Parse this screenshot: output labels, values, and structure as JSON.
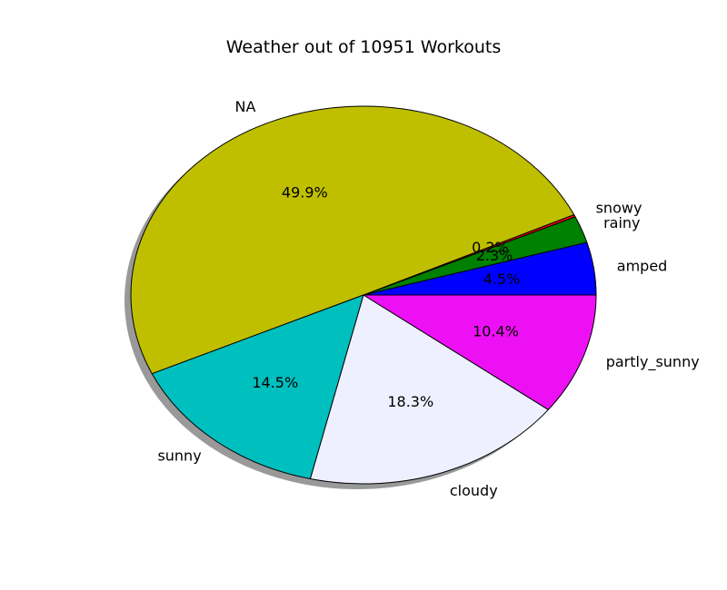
{
  "chart_data": {
    "type": "pie",
    "title": "Weather out of 10951 Workouts",
    "start_angle_deg": 0,
    "direction": "counterclockwise",
    "shadow": true,
    "slices": [
      {
        "label": "amped",
        "percent": 4.5,
        "pct_text": "4.5%",
        "color": "#0000ff"
      },
      {
        "label": "rainy",
        "percent": 2.3,
        "pct_text": "2.3%",
        "color": "#008000"
      },
      {
        "label": "snowy",
        "percent": 0.2,
        "pct_text": "0.2%",
        "color": "#ff0000"
      },
      {
        "label": "NA",
        "percent": 49.9,
        "pct_text": "49.9%",
        "color": "#bfbf00"
      },
      {
        "label": "sunny",
        "percent": 14.5,
        "pct_text": "14.5%",
        "color": "#00bfbf"
      },
      {
        "label": "cloudy",
        "percent": 18.3,
        "pct_text": "18.3%",
        "color": "#eef0ff"
      },
      {
        "label": "partly_sunny",
        "percent": 10.4,
        "pct_text": "10.4%",
        "color": "#ee10f5"
      }
    ]
  }
}
